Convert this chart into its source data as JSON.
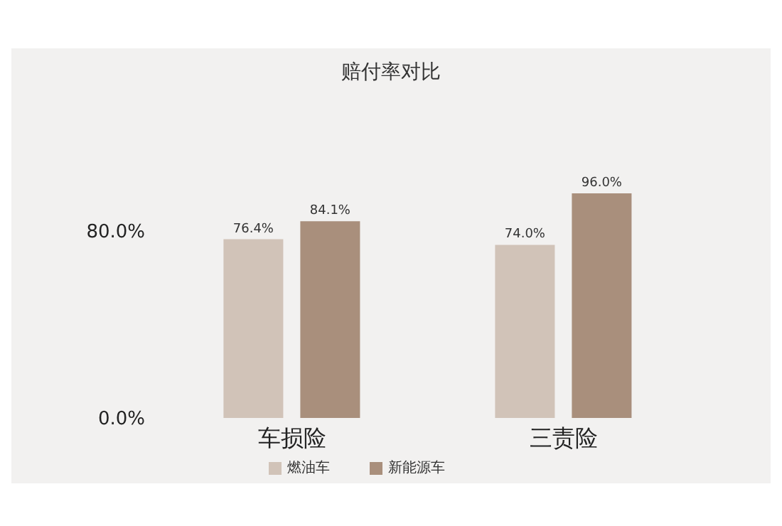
{
  "chart_data": {
    "type": "bar",
    "title": "赔付率对比",
    "categories": [
      "车损险",
      "三责险"
    ],
    "series": [
      {
        "name": "燃油车",
        "color": "#d1c3b8",
        "values": [
          76.4,
          74.0
        ],
        "value_labels": [
          "76.4%",
          "74.0%"
        ]
      },
      {
        "name": "新能源车",
        "color": "#a98f7c",
        "values": [
          84.1,
          96.0
        ],
        "value_labels": [
          "84.1%",
          "96.0%"
        ]
      }
    ],
    "ylim": [
      0,
      96
    ],
    "yticks": [
      {
        "value": 0,
        "label": "0.0%"
      },
      {
        "value": 80,
        "label": "80.0%"
      }
    ],
    "grid": false,
    "legend": "bottom"
  }
}
